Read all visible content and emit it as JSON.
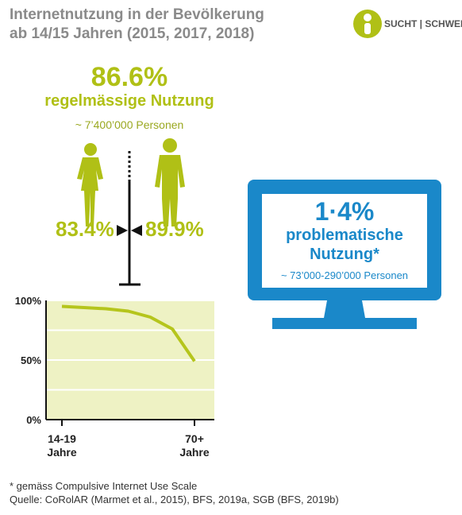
{
  "header": {
    "title_line1": "Internetnutzung in der Bevölkerung",
    "title_line2": "ab 14/15 Jahren (2015, 2017, 2018)",
    "logo_left": "SUCHT",
    "logo_right": "SCHWEIZ"
  },
  "usage": {
    "percent": "86.6%",
    "label": "regelmässige Nutzung",
    "persons": "~ 7’400’000 Personen",
    "women": "83.4%",
    "men": "89.9%"
  },
  "problem": {
    "percent": "1·4%",
    "label_line1": "problematische",
    "label_line2": "Nutzung*",
    "persons": "~ 73’000-290’000 Personen"
  },
  "chart_data": {
    "type": "line",
    "categories": [
      "14-19 Jahre",
      null,
      null,
      null,
      null,
      null,
      "70+ Jahre"
    ],
    "values": [
      95,
      94,
      93,
      91,
      86,
      76,
      49
    ],
    "color": "#b5c51c",
    "background": "#eef2c4",
    "ylim": [
      0,
      100
    ],
    "yticks": [
      {
        "value": 0,
        "label": "0%"
      },
      {
        "value": 50,
        "label": "50%"
      },
      {
        "value": 100,
        "label": "100%"
      }
    ],
    "minor_grid": [
      25,
      75
    ]
  },
  "footer": {
    "note": "* gemäss Compulsive Internet Use Scale",
    "source": "Quelle: CoRolAR (Marmet et al., 2015), BFS, 2019a, SGB (BFS, 2019b)"
  }
}
